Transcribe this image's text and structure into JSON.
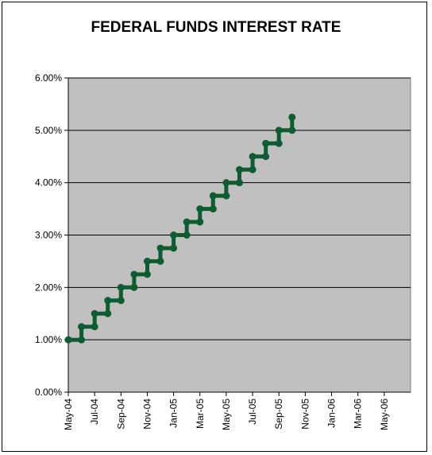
{
  "chart_data": {
    "type": "line",
    "title": "FEDERAL FUNDS INTEREST RATE",
    "xlabel": "",
    "ylabel": "",
    "ylim": [
      0,
      6
    ],
    "y_ticks": [
      "0.00%",
      "1.00%",
      "2.00%",
      "3.00%",
      "4.00%",
      "5.00%",
      "6.00%"
    ],
    "y_tick_values": [
      0,
      1,
      2,
      3,
      4,
      5,
      6
    ],
    "x_ticks": [
      "May-04",
      "Jul-04",
      "Sep-04",
      "Nov-04",
      "Jan-05",
      "Mar-05",
      "May-05",
      "Jul-05",
      "Sep-05",
      "Nov-05",
      "Jan-06",
      "Mar-06",
      "May-06"
    ],
    "x_tick_dates": [
      "2004-05-01",
      "2004-07-01",
      "2004-09-01",
      "2004-11-01",
      "2005-01-01",
      "2005-03-01",
      "2005-05-01",
      "2005-07-01",
      "2005-09-01",
      "2005-11-01",
      "2006-01-01",
      "2006-03-01",
      "2006-05-01"
    ],
    "xlim": [
      "2004-05-01",
      "2006-07-01"
    ],
    "grid": true,
    "colors": {
      "plot_bg": "#c0c0c0",
      "line": "#0f5c32",
      "grid": "#000000"
    },
    "series": [
      {
        "points": [
          [
            "2004-05-01",
            1.0
          ],
          [
            "2004-06-01",
            1.0
          ],
          [
            "2004-06-01",
            1.25
          ],
          [
            "2004-07-01",
            1.25
          ],
          [
            "2004-07-01",
            1.5
          ],
          [
            "2004-08-01",
            1.5
          ],
          [
            "2004-08-01",
            1.75
          ],
          [
            "2004-09-01",
            1.75
          ],
          [
            "2004-09-01",
            2.0
          ],
          [
            "2004-10-01",
            2.0
          ],
          [
            "2004-10-01",
            2.25
          ],
          [
            "2004-11-01",
            2.25
          ],
          [
            "2004-11-01",
            2.5
          ],
          [
            "2004-12-01",
            2.5
          ],
          [
            "2004-12-01",
            2.75
          ],
          [
            "2005-01-01",
            2.75
          ],
          [
            "2005-01-01",
            3.0
          ],
          [
            "2005-02-01",
            3.0
          ],
          [
            "2005-02-01",
            3.25
          ],
          [
            "2005-03-01",
            3.25
          ],
          [
            "2005-03-01",
            3.5
          ],
          [
            "2005-04-01",
            3.5
          ],
          [
            "2005-04-01",
            3.75
          ],
          [
            "2005-05-01",
            3.75
          ],
          [
            "2005-05-01",
            4.0
          ],
          [
            "2005-06-01",
            4.0
          ],
          [
            "2005-06-01",
            4.25
          ],
          [
            "2005-07-01",
            4.25
          ],
          [
            "2005-07-01",
            4.5
          ],
          [
            "2005-08-01",
            4.5
          ],
          [
            "2005-08-01",
            4.75
          ],
          [
            "2005-09-01",
            4.75
          ],
          [
            "2005-09-01",
            5.0
          ],
          [
            "2005-10-01",
            5.0
          ],
          [
            "2005-10-01",
            5.25
          ]
        ]
      }
    ]
  }
}
